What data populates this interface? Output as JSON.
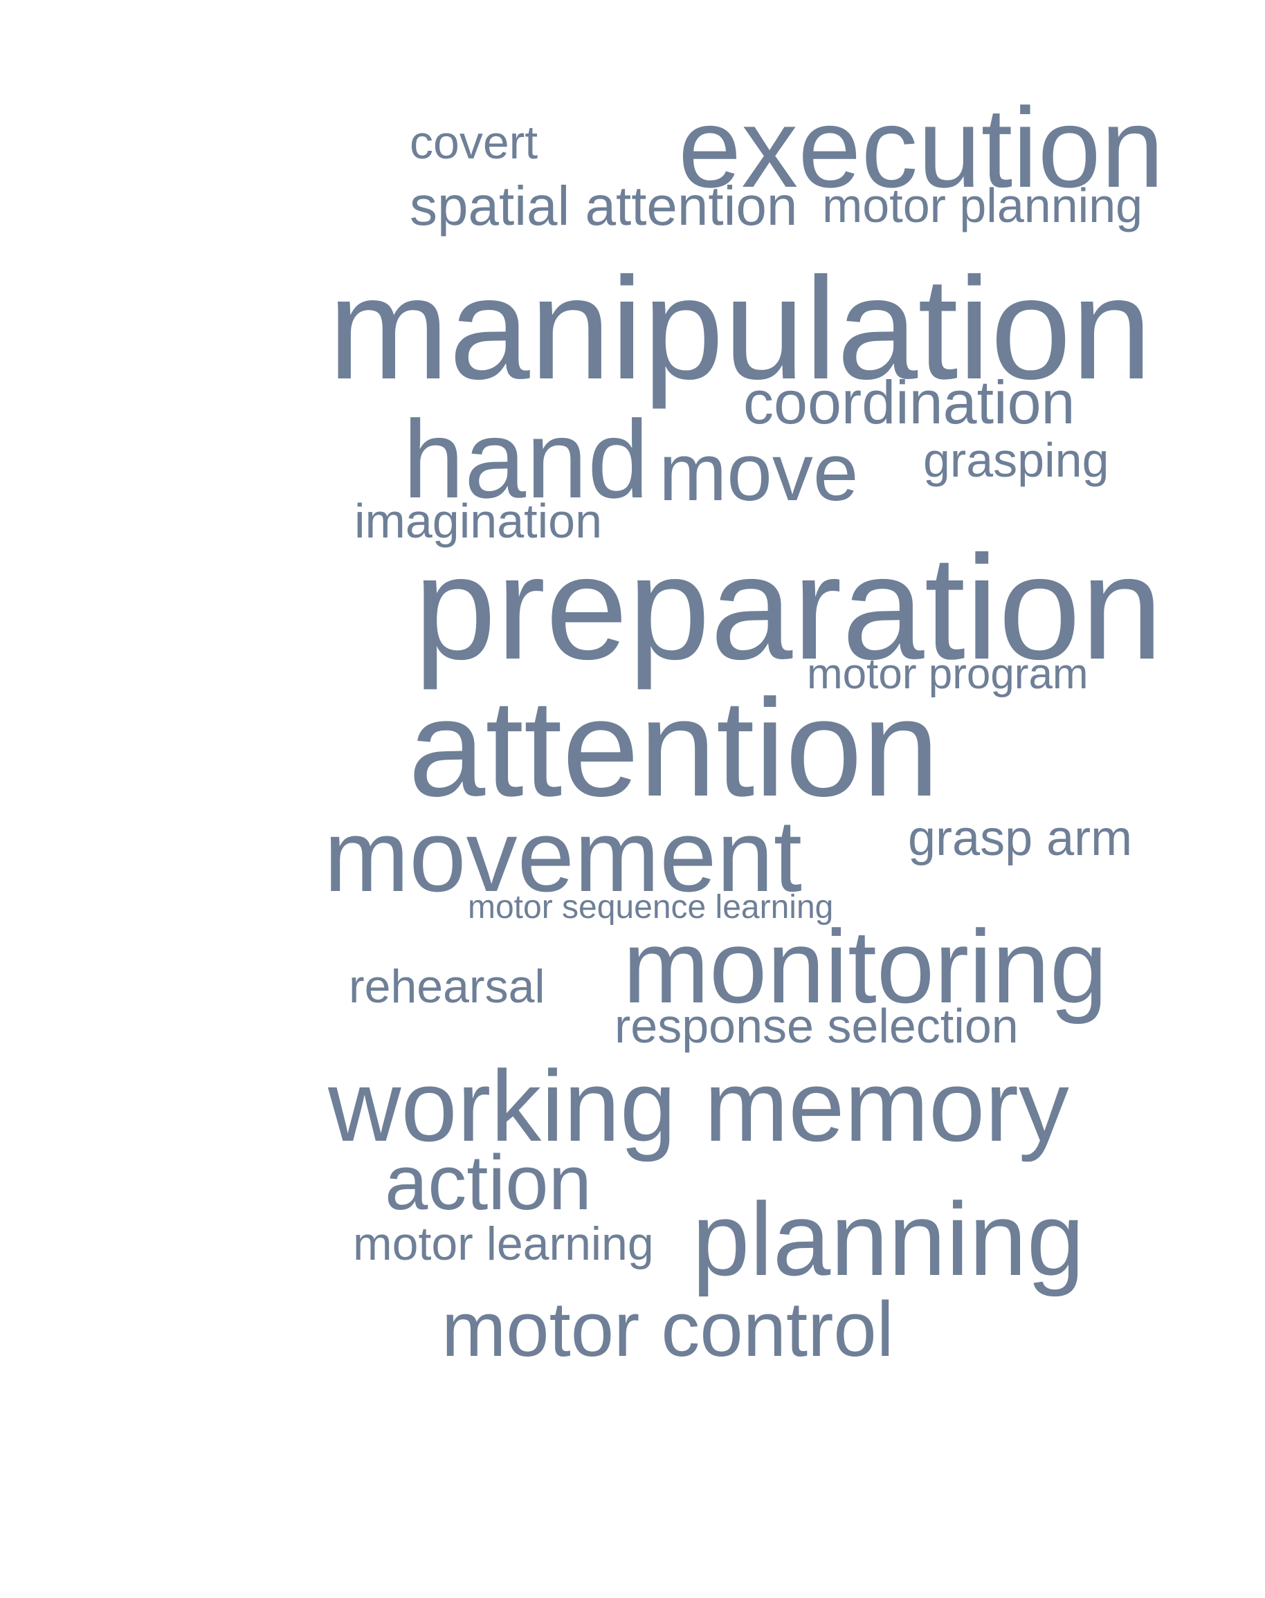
{
  "cloud": {
    "color": "#6e7f97",
    "words": {
      "covert": "covert",
      "execution": "execution",
      "spatial_attention": "spatial attention",
      "motor_planning": "motor planning",
      "manipulation": "manipulation",
      "coordination": "coordination",
      "hand": "hand",
      "move": "move",
      "grasping": "grasping",
      "imagination": "imagination",
      "preparation": "preparation",
      "motor_program": "motor program",
      "attention": "attention",
      "movement": "movement",
      "grasp_arm": "grasp arm",
      "motor_sequence_learning": "motor sequence learning",
      "rehearsal": "rehearsal",
      "monitoring": "monitoring",
      "response_selection": "response selection",
      "working_memory": "working memory",
      "action": "action",
      "motor_learning": "motor learning",
      "planning": "planning",
      "motor_control": "motor control"
    }
  }
}
